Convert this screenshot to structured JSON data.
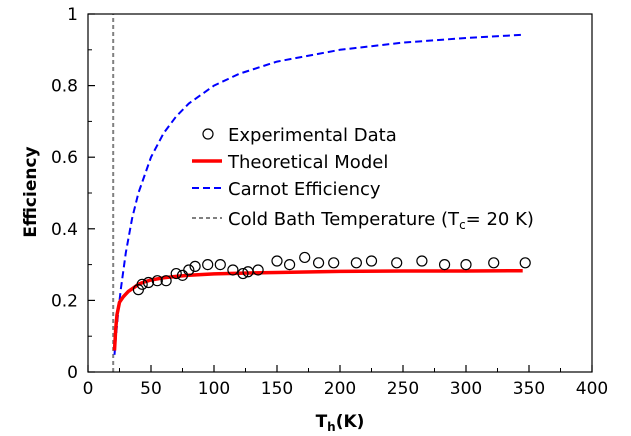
{
  "chart_data": {
    "type": "line",
    "xlabel": "T",
    "xlabel_sub": "h",
    "xlabel_unit": "(K)",
    "ylabel": "Efficiency",
    "xlim": [
      0,
      400
    ],
    "ylim": [
      0,
      1
    ],
    "xticks": [
      "0",
      "50",
      "100",
      "150",
      "200",
      "250",
      "300",
      "350",
      "400"
    ],
    "yticks": [
      "0",
      "0.2",
      "0.4",
      "0.6",
      "0.8",
      "1"
    ],
    "grid": false,
    "legend_position": "center-right",
    "series": [
      {
        "name": "Experimental Data",
        "kind": "scatter",
        "color": "#000000",
        "x": [
          40,
          43,
          48,
          55,
          62,
          70,
          75,
          80,
          85,
          95,
          105,
          115,
          123,
          127,
          135,
          150,
          160,
          172,
          183,
          195,
          213,
          225,
          245,
          265,
          283,
          300,
          322,
          347
        ],
        "y": [
          0.23,
          0.245,
          0.25,
          0.255,
          0.255,
          0.275,
          0.27,
          0.285,
          0.295,
          0.3,
          0.3,
          0.285,
          0.275,
          0.28,
          0.285,
          0.31,
          0.3,
          0.32,
          0.305,
          0.305,
          0.305,
          0.31,
          0.305,
          0.31,
          0.3,
          0.3,
          0.305,
          0.305
        ]
      },
      {
        "name": "Theoretical Model",
        "kind": "line",
        "color": "#ff0000",
        "x": [
          21,
          22,
          23,
          25,
          28,
          32,
          36,
          40,
          45,
          50,
          60,
          70,
          80,
          100,
          120,
          150,
          200,
          250,
          300,
          345
        ],
        "y": [
          0.06,
          0.12,
          0.16,
          0.195,
          0.21,
          0.225,
          0.235,
          0.245,
          0.252,
          0.257,
          0.263,
          0.267,
          0.27,
          0.274,
          0.276,
          0.278,
          0.281,
          0.282,
          0.282,
          0.283
        ]
      },
      {
        "name": "Carnot Efficiency",
        "kind": "dashed-line",
        "color": "#0000ff",
        "x": [
          21,
          22,
          24,
          26,
          30,
          35,
          40,
          50,
          60,
          70,
          80,
          100,
          120,
          150,
          200,
          250,
          300,
          345
        ],
        "y": [
          0.048,
          0.091,
          0.167,
          0.231,
          0.333,
          0.429,
          0.5,
          0.6,
          0.667,
          0.714,
          0.75,
          0.8,
          0.833,
          0.867,
          0.9,
          0.92,
          0.933,
          0.942
        ]
      },
      {
        "name": "Cold Bath Temperature (T",
        "name_sub": "c",
        "name_tail": "= 20 K)",
        "kind": "vertical-dashed",
        "color": "#808080",
        "x": [
          20,
          20
        ],
        "y": [
          0,
          1
        ]
      }
    ]
  }
}
